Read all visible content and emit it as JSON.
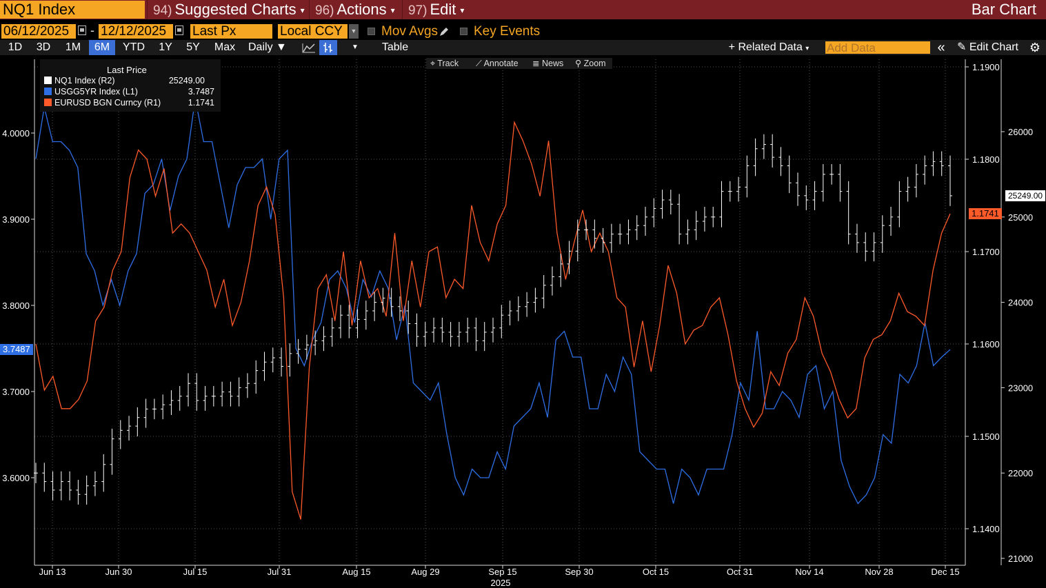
{
  "header": {
    "ticker": "NQ1 Index",
    "menus": [
      {
        "num": "94)",
        "label": "Suggested Charts"
      },
      {
        "num": "96)",
        "label": "Actions"
      },
      {
        "num": "97)",
        "label": "Edit"
      }
    ],
    "title": "Bar Chart"
  },
  "controls": {
    "start_date": "06/12/2025",
    "date_sep": "-",
    "end_date": "12/12/2025",
    "price_field": "Last Px",
    "currency": "Local CCY",
    "mov_avgs": "Mov Avgs",
    "key_events": "Key Events"
  },
  "toolbar": {
    "ranges": [
      "1D",
      "3D",
      "1M",
      "6M",
      "YTD",
      "1Y",
      "5Y",
      "Max"
    ],
    "active_range": "6M",
    "frequency": "Daily",
    "table": "Table",
    "related_data": "+ Related Data",
    "add_data_placeholder": "Add Data",
    "edit_chart": "Edit Chart"
  },
  "chart_controls": [
    "Track",
    "Annotate",
    "News",
    "Zoom"
  ],
  "legend": {
    "title": "Last Price",
    "items": [
      {
        "label": "NQ1 Index  (R2)",
        "value": "25249.00",
        "color": "#ffffff"
      },
      {
        "label": "USGG5YR Index  (L1)",
        "value": "3.7487",
        "color": "#2e6fe6"
      },
      {
        "label": "EURUSD BGN Curncy  (R1)",
        "value": "1.1741",
        "color": "#ff5a2a"
      }
    ]
  },
  "badges": {
    "left": "3.7487",
    "right_nq": "25249.00",
    "right_eur": "1.1741"
  },
  "chart_data": {
    "type": "line",
    "x_labels": [
      "Jun 13",
      "Jun 30",
      "Jul 15",
      "Jul 31",
      "Aug 15",
      "Aug 29",
      "Sep 15",
      "Sep 30",
      "Oct 15",
      "Oct 31",
      "Nov 14",
      "Nov 28",
      "Dec 15"
    ],
    "x_year": "2025",
    "left_axis": {
      "ticks": [
        "4.0000",
        "3.9000",
        "3.8000",
        "3.7000",
        "3.6000"
      ],
      "range": [
        3.5,
        4.08
      ]
    },
    "right1_axis": {
      "ticks": [
        "1.1900",
        "1.1800",
        "1.1700",
        "1.1600",
        "1.1500",
        "1.1400"
      ],
      "range": [
        1.135,
        1.192
      ]
    },
    "right2_axis": {
      "ticks": [
        "26000",
        "25000",
        "24000",
        "23000",
        "22000",
        "21000"
      ],
      "range": [
        20950,
        26750
      ]
    },
    "series": [
      {
        "name": "USGG5YR Index  (L1)",
        "color": "#2e6fe6",
        "values": [
          3.97,
          4.03,
          3.99,
          3.99,
          3.98,
          3.96,
          3.86,
          3.84,
          3.8,
          3.83,
          3.8,
          3.84,
          3.86,
          3.93,
          3.94,
          3.97,
          3.91,
          3.95,
          3.97,
          4.04,
          3.99,
          3.99,
          3.94,
          3.89,
          3.94,
          3.96,
          3.96,
          3.97,
          3.9,
          3.97,
          3.98,
          3.75,
          3.73,
          3.76,
          3.78,
          3.83,
          3.84,
          3.82,
          3.78,
          3.83,
          3.81,
          3.84,
          3.82,
          3.76,
          3.8,
          3.71,
          3.7,
          3.69,
          3.71,
          3.65,
          3.6,
          3.58,
          3.61,
          3.6,
          3.6,
          3.63,
          3.61,
          3.66,
          3.67,
          3.68,
          3.71,
          3.67,
          3.76,
          3.77,
          3.74,
          3.74,
          3.68,
          3.68,
          3.72,
          3.7,
          3.74,
          3.72,
          3.63,
          3.62,
          3.61,
          3.61,
          3.57,
          3.61,
          3.6,
          3.58,
          3.61,
          3.61,
          3.61,
          3.65,
          3.71,
          3.69,
          3.77,
          3.68,
          3.68,
          3.7,
          3.69,
          3.67,
          3.72,
          3.73,
          3.68,
          3.7,
          3.62,
          3.59,
          3.57,
          3.58,
          3.6,
          3.65,
          3.64,
          3.72,
          3.71,
          3.73,
          3.78,
          3.73,
          3.74,
          3.7487
        ]
      },
      {
        "name": "EURUSD BGN Curncy  (R1)",
        "color": "#ff5a2a",
        "values": [
          1.16,
          1.155,
          1.1565,
          1.153,
          1.153,
          1.154,
          1.156,
          1.1625,
          1.164,
          1.168,
          1.17,
          1.178,
          1.181,
          1.18,
          1.176,
          1.179,
          1.172,
          1.173,
          1.172,
          1.17,
          1.168,
          1.164,
          1.167,
          1.162,
          1.1645,
          1.169,
          1.175,
          1.177,
          1.174,
          1.165,
          1.144,
          1.141,
          1.1575,
          1.166,
          1.1675,
          1.1625,
          1.17,
          1.162,
          1.169,
          1.165,
          1.166,
          1.163,
          1.172,
          1.1625,
          1.169,
          1.164,
          1.17,
          1.1705,
          1.165,
          1.167,
          1.166,
          1.175,
          1.171,
          1.169,
          1.173,
          1.175,
          1.184,
          1.182,
          1.1795,
          1.176,
          1.182,
          1.172,
          1.167,
          1.171,
          1.1745,
          1.17,
          1.172,
          1.17,
          1.165,
          1.164,
          1.1575,
          1.1625,
          1.157,
          1.162,
          1.1685,
          1.1655,
          1.16,
          1.1615,
          1.162,
          1.164,
          1.165,
          1.161,
          1.156,
          1.153,
          1.151,
          1.1525,
          1.157,
          1.1555,
          1.159,
          1.1605,
          1.165,
          1.163,
          1.159,
          1.157,
          1.154,
          1.152,
          1.153,
          1.1585,
          1.1605,
          1.161,
          1.1625,
          1.1655,
          1.1635,
          1.163,
          1.162,
          1.168,
          1.172,
          1.1741
        ]
      },
      {
        "name": "NQ1 Index  (R2)",
        "color": "#ffffff",
        "values": [
          22000,
          21900,
          21800,
          21900,
          21800,
          21750,
          21850,
          21900,
          22100,
          22400,
          22500,
          22550,
          22650,
          22750,
          22750,
          22800,
          22850,
          22900,
          23050,
          22850,
          22900,
          22900,
          22950,
          22900,
          23000,
          23050,
          23200,
          23300,
          23350,
          23250,
          23400,
          23450,
          23500,
          23550,
          23600,
          23700,
          23850,
          23700,
          23800,
          23900,
          24000,
          24050,
          23950,
          23900,
          23750,
          23600,
          23650,
          23700,
          23650,
          23600,
          23650,
          23700,
          23550,
          23650,
          23700,
          23850,
          23900,
          23950,
          24000,
          24050,
          24200,
          24300,
          24450,
          24600,
          24850,
          24850,
          24750,
          24700,
          24800,
          24800,
          24850,
          24900,
          25000,
          25100,
          25200,
          25150,
          24800,
          24850,
          24950,
          25000,
          25000,
          25300,
          25300,
          25350,
          25600,
          25800,
          25850,
          25700,
          25600,
          25400,
          25250,
          25200,
          25300,
          25500,
          25500,
          25300,
          24800,
          24700,
          24600,
          24700,
          24900,
          25000,
          25300,
          25350,
          25500,
          25600,
          25650,
          25600,
          25249
        ]
      }
    ]
  }
}
